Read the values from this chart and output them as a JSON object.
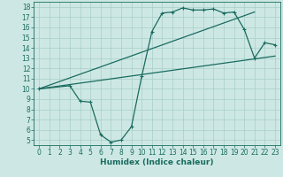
{
  "xlabel": "Humidex (Indice chaleur)",
  "bg_color": "#cde8e4",
  "grid_color": "#a8cdc8",
  "line_color": "#1a6b60",
  "xlim": [
    -0.5,
    23.5
  ],
  "ylim": [
    4.5,
    18.5
  ],
  "xticks": [
    0,
    1,
    2,
    3,
    4,
    5,
    6,
    7,
    8,
    9,
    10,
    11,
    12,
    13,
    14,
    15,
    16,
    17,
    18,
    19,
    20,
    21,
    22,
    23
  ],
  "yticks": [
    5,
    6,
    7,
    8,
    9,
    10,
    11,
    12,
    13,
    14,
    15,
    16,
    17,
    18
  ],
  "curve1_x": [
    0,
    3,
    4,
    5,
    6,
    7,
    8,
    9,
    10,
    11,
    12,
    13,
    14,
    15,
    16,
    17,
    18,
    19,
    20,
    21,
    22,
    23
  ],
  "curve1_y": [
    10,
    10.3,
    8.8,
    8.7,
    5.5,
    4.8,
    5.0,
    6.3,
    11.2,
    15.6,
    17.4,
    17.5,
    17.9,
    17.7,
    17.7,
    17.8,
    17.4,
    17.5,
    15.8,
    13.0,
    14.5,
    14.3
  ],
  "line2_x": [
    0,
    23
  ],
  "line2_y": [
    10.0,
    13.2
  ],
  "line3_x": [
    0,
    21
  ],
  "line3_y": [
    10.0,
    17.5
  ],
  "font_size_label": 6.5,
  "font_size_tick": 5.5,
  "line_width": 0.9,
  "marker_size": 3.0,
  "marker_style": "+"
}
